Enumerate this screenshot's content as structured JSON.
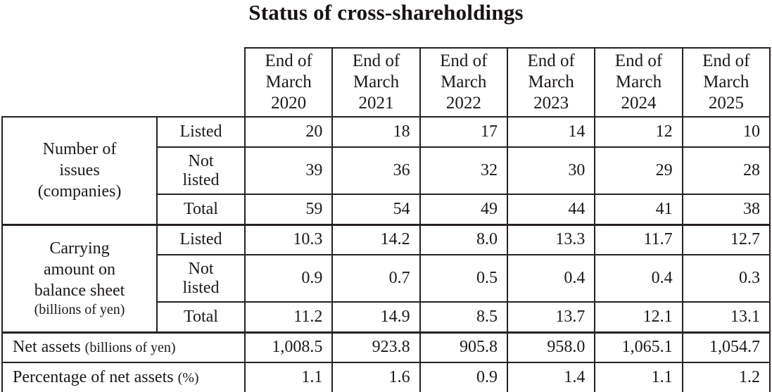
{
  "title": "Status of cross-shareholdings",
  "colors": {
    "background": "#ffffff",
    "text": "#1d1819",
    "border": "#262122"
  },
  "table": {
    "columns": [
      "End of\nMarch\n2020",
      "End of\nMarch\n2021",
      "End of\nMarch\n2022",
      "End of\nMarch\n2023",
      "End of\nMarch\n2024",
      "End of\nMarch\n2025"
    ],
    "sections": [
      {
        "label": "Number of\nissues\n(companies)",
        "rows": [
          {
            "label": "Listed",
            "values": [
              "20",
              "18",
              "17",
              "14",
              "12",
              "10"
            ]
          },
          {
            "label": "Not\nlisted",
            "values": [
              "39",
              "36",
              "32",
              "30",
              "29",
              "28"
            ]
          },
          {
            "label": "Total",
            "values": [
              "59",
              "54",
              "49",
              "44",
              "41",
              "38"
            ]
          }
        ]
      },
      {
        "label": "Carrying\namount on\nbalance sheet",
        "sublabel": "(billions of yen)",
        "rows": [
          {
            "label": "Listed",
            "values": [
              "10.3",
              "14.2",
              "8.0",
              "13.3",
              "11.7",
              "12.7"
            ]
          },
          {
            "label": "Not\nlisted",
            "values": [
              "0.9",
              "0.7",
              "0.5",
              "0.4",
              "0.4",
              "0.3"
            ]
          },
          {
            "label": "Total",
            "values": [
              "11.2",
              "14.9",
              "8.5",
              "13.7",
              "12.1",
              "13.1"
            ]
          }
        ]
      }
    ],
    "footer_rows": [
      {
        "label": "Net assets",
        "sublabel": "(billions of yen)",
        "values": [
          "1,008.5",
          "923.8",
          "905.8",
          "958.0",
          "1,065.1",
          "1,054.7"
        ]
      },
      {
        "label": "Percentage of net assets",
        "sublabel": "(%)",
        "values": [
          "1.1",
          "1.6",
          "0.9",
          "1.4",
          "1.1",
          "1.2"
        ]
      }
    ]
  }
}
